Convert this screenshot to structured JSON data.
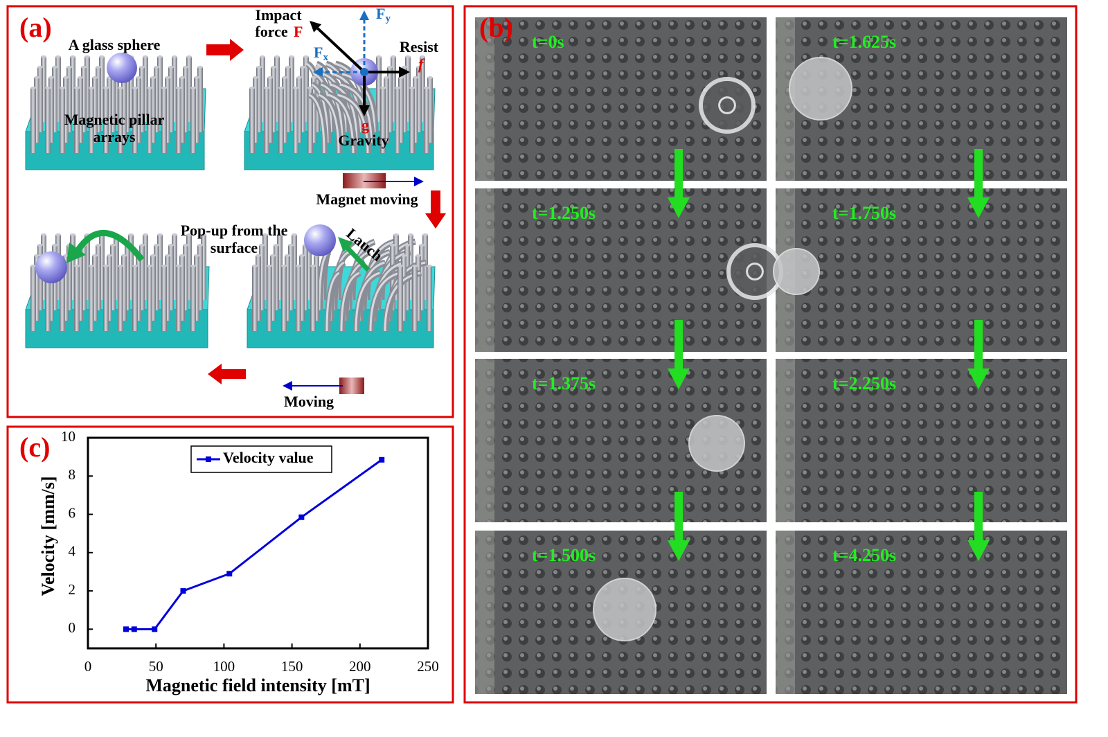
{
  "panel_a": {
    "label": "(a)",
    "sphere_label": "A glass sphere",
    "pillar_label_1": "Magnetic pillar",
    "pillar_label_2": "arrays",
    "impact_1": "Impact",
    "impact_2": "force",
    "impact_symbol": "F",
    "fy_main": "F",
    "fy_sub": "y",
    "fx_main": "F",
    "fx_sub": "x",
    "resist": "Resist",
    "resist_symbol": "f",
    "gravity_symbol": "g",
    "gravity": "Gravity",
    "magnet_moving": "Magnet moving",
    "popup_1": "Pop-up from the",
    "popup_2": "surface",
    "launch": "Lauch",
    "moving": "Moving"
  },
  "panel_b": {
    "label": "(b)",
    "tiles": [
      "t=0s",
      "t=1.625s",
      "t=1.250s",
      "t=1.750s",
      "t=1.375s",
      "t=2.250s",
      "t=1.500s",
      "t=4.250s"
    ]
  },
  "chart_data": {
    "type": "line",
    "panel_label": "(c)",
    "xlabel": "Magnetic field intensity [mT]",
    "ylabel": "Velocity [mm/s]",
    "x": [
      28,
      34,
      49,
      70,
      104,
      157,
      216
    ],
    "series": [
      {
        "name": "Velocity value",
        "color": "#0000dd",
        "values": [
          0,
          0,
          0,
          2.0,
          2.9,
          5.85,
          8.85
        ]
      }
    ],
    "xlim": [
      0,
      250
    ],
    "xticks": [
      0,
      50,
      100,
      150,
      200,
      250
    ],
    "ylim": [
      -1,
      10
    ],
    "yticks": [
      0,
      2,
      4,
      6,
      8,
      10
    ],
    "legend": "upper center"
  }
}
